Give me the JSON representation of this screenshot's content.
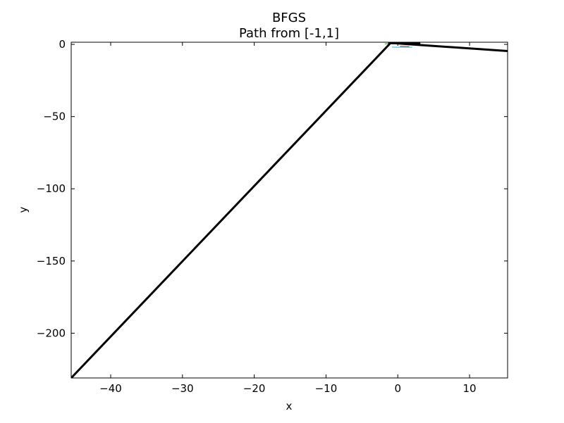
{
  "chart_data": {
    "type": "line",
    "title": "BFGS",
    "subtitle": "Path from [-1,1]",
    "xlabel": "x",
    "ylabel": "y",
    "xlim": [
      -45.5,
      15.3
    ],
    "ylim": [
      -231.0,
      1.5
    ],
    "xticks": [
      -40,
      -30,
      -20,
      -10,
      0,
      10
    ],
    "yticks": [
      0,
      -50,
      -100,
      -150,
      -200
    ],
    "xtick_labels": [
      "−40",
      "−30",
      "−20",
      "−10",
      "0",
      "10"
    ],
    "ytick_labels": [
      "0",
      "−50",
      "−100",
      "−150",
      "−200"
    ],
    "grid": false,
    "series": [
      {
        "color": "#000000",
        "points": [
          [
            -45.5,
            -231.0
          ],
          [
            -1.0,
            1.0
          ],
          [
            15.3,
            -4.6
          ]
        ]
      },
      {
        "color": "#000000",
        "points": [
          [
            -1.2,
            0.9
          ],
          [
            3.0,
            0.9
          ]
        ]
      }
    ],
    "contour_segments": [
      {
        "color": "#2ca02c",
        "points": [
          [
            -1.8,
            0.4
          ],
          [
            -0.8,
            0.5
          ]
        ]
      },
      {
        "color": "#17becf",
        "points": [
          [
            -0.8,
            -1.9
          ],
          [
            2.0,
            -2.0
          ]
        ]
      },
      {
        "color": "#d62728",
        "points": [
          [
            0.3,
            -1.3
          ],
          [
            1.6,
            -1.4
          ]
        ]
      },
      {
        "color": "#1f77b4",
        "points": [
          [
            0.2,
            0.6
          ],
          [
            1.5,
            0.6
          ]
        ]
      }
    ]
  }
}
